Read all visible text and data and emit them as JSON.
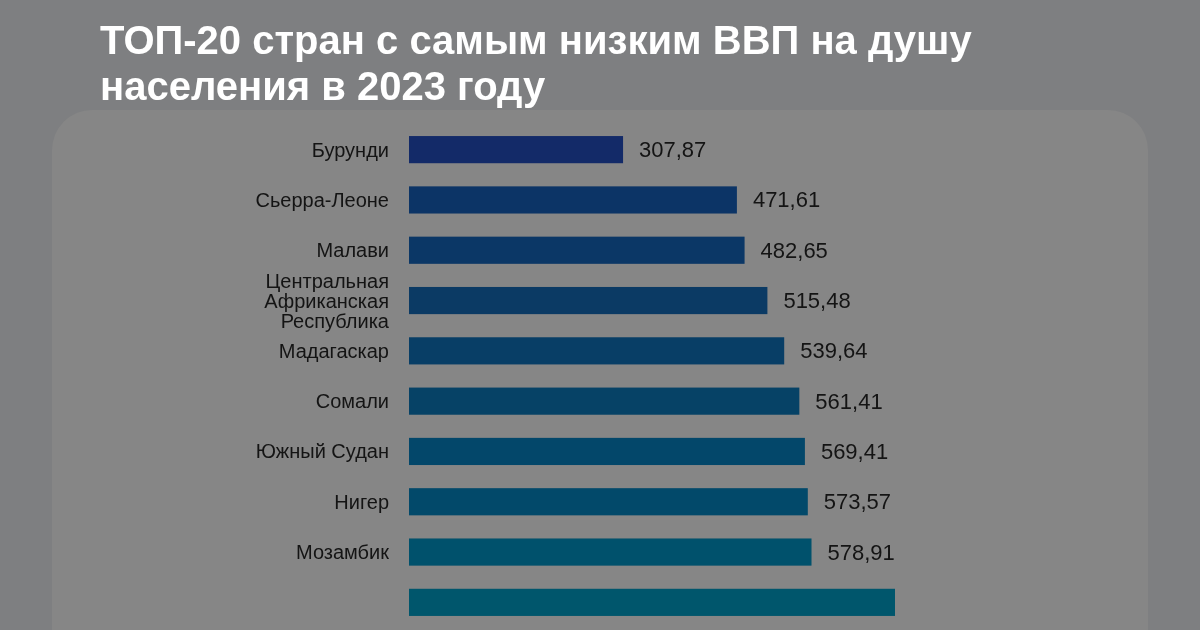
{
  "chart_data": {
    "type": "bar",
    "orientation": "horizontal",
    "title": "ТОП-20 стран с самым низким ВВП на душу населения в 2023 году",
    "categories": [
      "Бурунди",
      "Сьерра-Леоне",
      "Малави",
      "Центральная Африканская Республика",
      "Мадагаскар",
      "Сомали",
      "Южный Судан",
      "Нигер",
      "Мозамбик",
      null
    ],
    "values": [
      307.87,
      471.61,
      482.65,
      515.48,
      539.64,
      561.41,
      569.41,
      573.57,
      578.91,
      699
    ],
    "value_labels": [
      "307,87",
      "471,61",
      "482,65",
      "515,48",
      "539,64",
      "561,41",
      "569,41",
      "573,57",
      "578,91",
      null
    ],
    "colors": [
      "#132a68",
      "#0c3466",
      "#0b3766",
      "#0b3a64",
      "#083e66",
      "#064266",
      "#03476a",
      "#02496a",
      "#00516c",
      "#00566c"
    ]
  }
}
